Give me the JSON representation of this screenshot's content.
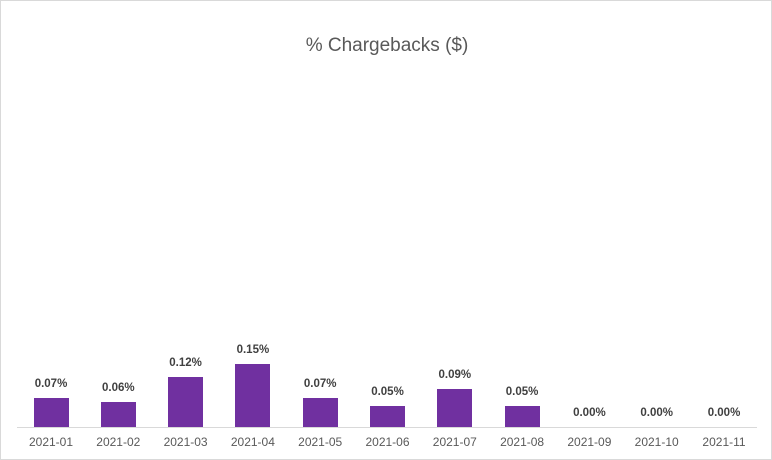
{
  "chart_data": {
    "type": "bar",
    "title": "% Chargebacks ($)",
    "xlabel": "",
    "ylabel": "",
    "categories": [
      "2021-01",
      "2021-02",
      "2021-03",
      "2021-04",
      "2021-05",
      "2021-06",
      "2021-07",
      "2021-08",
      "2021-09",
      "2021-10",
      "2021-11"
    ],
    "values": [
      0.07,
      0.06,
      0.12,
      0.15,
      0.07,
      0.05,
      0.09,
      0.05,
      0.0,
      0.0,
      0.0
    ],
    "value_labels": [
      "0.07%",
      "0.06%",
      "0.12%",
      "0.15%",
      "0.07%",
      "0.05%",
      "0.09%",
      "0.05%",
      "0.00%",
      "0.00%",
      "0.00%"
    ],
    "unit": "%",
    "bar_color": "#7030a0",
    "grid": false,
    "legend": null,
    "ylim": [
      0,
      0.8
    ]
  }
}
